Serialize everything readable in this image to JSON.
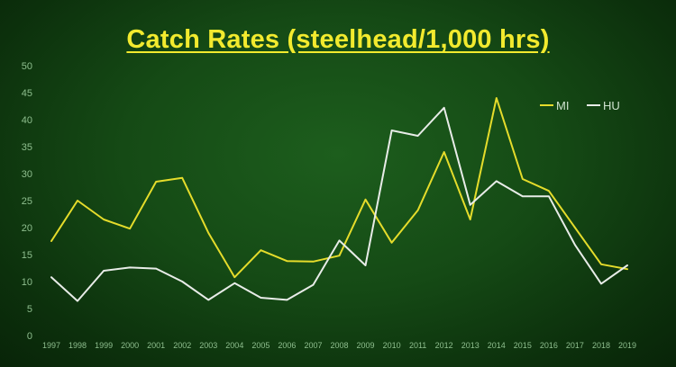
{
  "slide": {
    "title": "Catch Rates (steelhead/1,000 hrs)"
  },
  "chart_data": {
    "type": "line",
    "title": "Catch Rates (steelhead/1,000 hrs)",
    "xlabel": "",
    "ylabel": "",
    "x": [
      "1997",
      "1998",
      "1999",
      "2000",
      "2001",
      "2002",
      "2003",
      "2004",
      "2005",
      "2006",
      "2007",
      "2008",
      "2009",
      "2010",
      "2011",
      "2012",
      "2013",
      "2014",
      "2015",
      "2016",
      "2017",
      "2018",
      "2019"
    ],
    "ylim": [
      0,
      50
    ],
    "yticks": [
      "0",
      "5",
      "10",
      "15",
      "20",
      "25",
      "30",
      "35",
      "40",
      "45",
      "50"
    ],
    "grid": false,
    "legend": "top-right",
    "series": [
      {
        "name": "MI",
        "color": "#e5dc2b",
        "values": [
          17.5,
          25,
          21.5,
          19.8,
          28.5,
          29.2,
          19,
          10.8,
          15.8,
          13.8,
          13.7,
          14.8,
          25.2,
          17.2,
          23.2,
          34,
          21.5,
          44,
          29,
          26.8,
          20,
          13.2,
          12.3
        ]
      },
      {
        "name": "HU",
        "color": "#e8ece8",
        "values": [
          10.8,
          6.4,
          12,
          12.6,
          12.4,
          10,
          6.6,
          9.7,
          7,
          6.6,
          9.4,
          17.6,
          13,
          38,
          37,
          42.2,
          24.2,
          28.6,
          25.8,
          25.8,
          16.8,
          9.6,
          13
        ]
      }
    ]
  }
}
